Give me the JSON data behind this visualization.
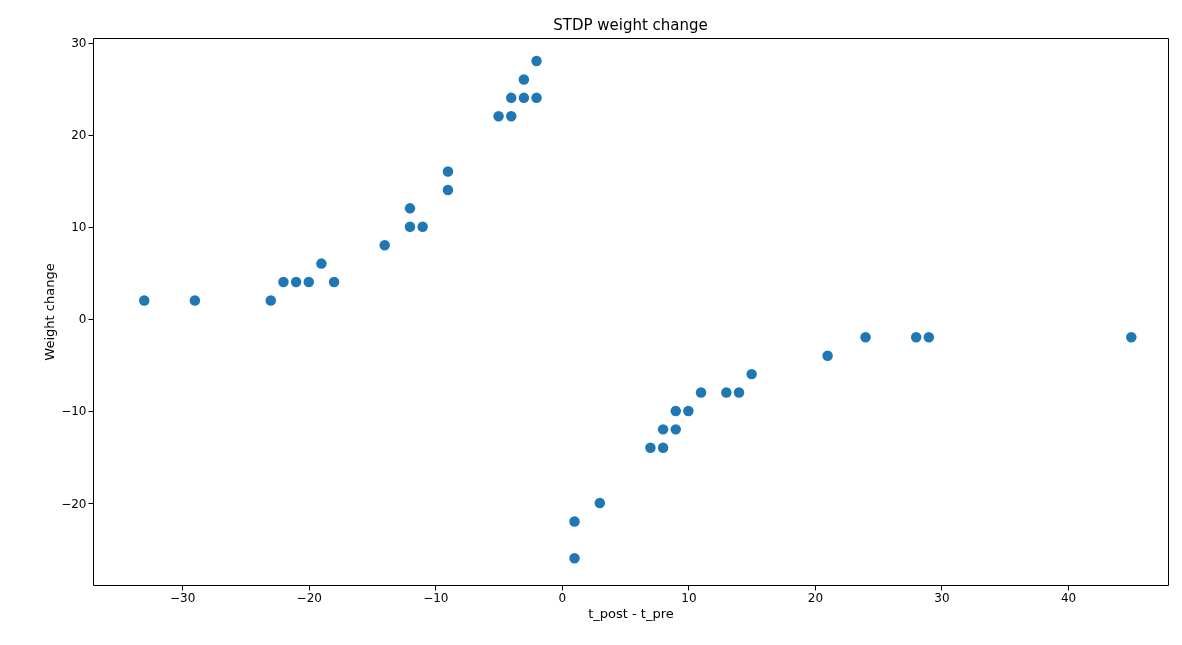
{
  "chart_data": {
    "type": "scatter",
    "title": "STDP weight change",
    "xlabel": "t_post - t_pre",
    "ylabel": "Weight change",
    "x": [
      -33,
      -29,
      -23,
      -22,
      -21,
      -20,
      -19,
      -18,
      -14,
      -12,
      -12,
      -11,
      -9,
      -9,
      -5,
      -4,
      -4,
      -3,
      -3,
      -2,
      -2,
      1,
      1,
      3,
      7,
      8,
      8,
      9,
      9,
      10,
      11,
      13,
      14,
      15,
      21,
      24,
      28,
      29,
      45
    ],
    "series": [
      {
        "color": "#1f77b4",
        "values": [
          2,
          2,
          2,
          4,
          4,
          4,
          6,
          4,
          8,
          12,
          10,
          10,
          16,
          14,
          22,
          22,
          24,
          24,
          26,
          28,
          24,
          -22,
          -26,
          -20,
          -14,
          -14,
          -12,
          -12,
          -10,
          -10,
          -8,
          -8,
          -8,
          -6,
          -4,
          -2,
          -2,
          -2,
          -2
        ]
      }
    ],
    "xlim": [
      -37.05,
      47.9
    ],
    "ylim": [
      -28.9,
      30.5
    ],
    "xticks": [
      -30,
      -20,
      -10,
      0,
      10,
      20,
      30,
      40
    ],
    "yticks": [
      -20,
      -10,
      0,
      10,
      20,
      30
    ],
    "marker": "circle",
    "grid": false,
    "legend": false
  }
}
